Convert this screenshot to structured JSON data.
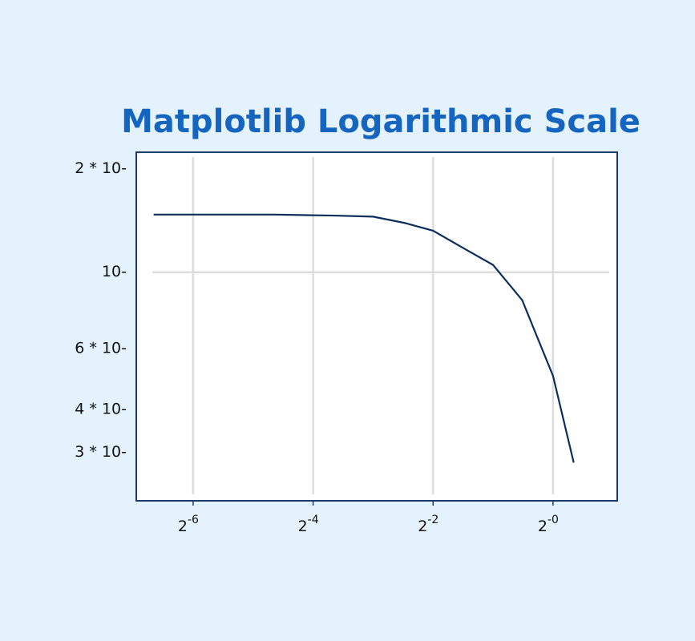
{
  "chart_data": {
    "type": "line",
    "title": "Matplotlib Logarithmic Scale",
    "x": [
      0.0099,
      0.02,
      0.04,
      0.08,
      0.125,
      0.18,
      0.25,
      0.35,
      0.5,
      0.7,
      1.0,
      1.27
    ],
    "series": [
      {
        "color": "#0b2e5c",
        "values": [
          0.147,
          0.147,
          0.147,
          0.146,
          0.145,
          0.139,
          0.132,
          0.118,
          0.105,
          0.083,
          0.05,
          0.028
        ]
      }
    ],
    "xscale": "log2",
    "yscale": "log10",
    "xlim": [
      0.0081,
      2.1
    ],
    "ylim": [
      0.0217,
      0.223
    ],
    "xticks": [
      {
        "value": 0.015625,
        "label": "2 -6"
      },
      {
        "value": 0.0625,
        "label": "2 -4"
      },
      {
        "value": 0.25,
        "label": "2 -2"
      },
      {
        "value": 1,
        "label": "2 -0"
      }
    ],
    "yticks": [
      {
        "value": 0.2,
        "label": "2 * 10-"
      },
      {
        "value": 0.1,
        "label": "10-"
      },
      {
        "value": 0.06,
        "label": "6 * 10-"
      },
      {
        "value": 0.04,
        "label": "4 * 10-"
      },
      {
        "value": 0.03,
        "label": "3 * 10-"
      }
    ],
    "grid": true
  }
}
